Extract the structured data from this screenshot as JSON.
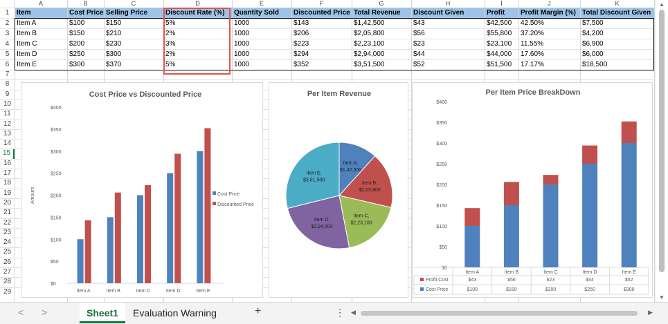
{
  "columns": [
    "A",
    "B",
    "C",
    "D",
    "E",
    "F",
    "G",
    "H",
    "I",
    "J",
    "K"
  ],
  "rows": [
    "1",
    "2",
    "3",
    "4",
    "5",
    "6",
    "7",
    "8",
    "9",
    "10",
    "11",
    "12",
    "13",
    "14",
    "15",
    "16",
    "17",
    "18",
    "19",
    "20",
    "21",
    "22",
    "23",
    "24",
    "25",
    "26",
    "27",
    "28",
    "29"
  ],
  "selected_row": "15",
  "table": {
    "headers": [
      "Item",
      "Cost Price",
      "Selling Price",
      "Discount Rate (%)",
      "Quantity Sold",
      "Discounted Price",
      "Total Revenue",
      "Discount Given",
      "Profit",
      "Profit Margin (%)",
      "Total Discount Given"
    ],
    "rows": [
      [
        "Item A",
        "$100",
        "$150",
        "5%",
        "1000",
        "$143",
        "$1,42,500",
        "$43",
        "$42,500",
        "42.50%",
        "$7,500"
      ],
      [
        "Item B",
        "$150",
        "$210",
        "2%",
        "1000",
        "$206",
        "$2,05,800",
        "$56",
        "$55,800",
        "37.20%",
        "$4,200"
      ],
      [
        "Item C",
        "$200",
        "$230",
        "3%",
        "1000",
        "$223",
        "$2,23,100",
        "$23",
        "$23,100",
        "11.55%",
        "$6,900"
      ],
      [
        "Item D",
        "$250",
        "$300",
        "2%",
        "1000",
        "$294",
        "$2,94,000",
        "$44",
        "$44,000",
        "17.60%",
        "$6,000"
      ],
      [
        "Item E",
        "$300",
        "$370",
        "5%",
        "1000",
        "$352",
        "$3,51,500",
        "$52",
        "$51,500",
        "17.17%",
        "$18,500"
      ]
    ],
    "highlight_color": "#e8514a"
  },
  "chart_data": [
    {
      "type": "bar",
      "title": "Cost Price vs Discounted Price",
      "ylabel": "Amount",
      "xlabel": "",
      "categories": [
        "Item A",
        "Item B",
        "Item C",
        "Item D",
        "Item E"
      ],
      "ylim": [
        0,
        400
      ],
      "yticks": [
        "$0",
        "$50",
        "$100",
        "$150",
        "$200",
        "$250",
        "$300",
        "$350",
        "$400"
      ],
      "series": [
        {
          "name": "Cost Price",
          "values": [
            100,
            150,
            200,
            250,
            300
          ],
          "color": "#4f81bd"
        },
        {
          "name": "Discounted Price",
          "values": [
            143,
            206,
            223,
            294,
            352
          ],
          "color": "#c0504d"
        }
      ],
      "legend": "right",
      "grid": false
    },
    {
      "type": "pie",
      "title": "Per Item Revenue",
      "categories": [
        "Item A",
        "Item B",
        "Item C",
        "Item D",
        "Item E"
      ],
      "values": [
        142500,
        205800,
        223100,
        294000,
        351500
      ],
      "labels": [
        "$1,42,500",
        "$2,05,800",
        "$2,23,100",
        "$2,94,000",
        "$3,51,500"
      ],
      "colors": [
        "#4f81bd",
        "#c0504d",
        "#9bbb59",
        "#8064a2",
        "#4bacc6"
      ]
    },
    {
      "type": "bar",
      "stacked": true,
      "title": "Per Item Price BreakDown",
      "categories": [
        "Item A",
        "Item B",
        "Item C",
        "Item D",
        "Item E"
      ],
      "ylim": [
        0,
        400
      ],
      "yticks": [
        "$0",
        "$50",
        "$100",
        "$150",
        "$200",
        "$250",
        "$300",
        "$350",
        "$400"
      ],
      "series": [
        {
          "name": "Cost Price",
          "values": [
            100,
            150,
            200,
            250,
            300
          ],
          "labels": [
            "$100",
            "$150",
            "$200",
            "$250",
            "$300"
          ],
          "color": "#4f81bd"
        },
        {
          "name": "Profit Cost",
          "values": [
            43,
            56,
            23,
            44,
            52
          ],
          "labels": [
            "$43",
            "$56",
            "$23",
            "$44",
            "$52"
          ],
          "color": "#c0504d"
        }
      ],
      "legend": "data-table",
      "grid": false
    }
  ],
  "tabs": {
    "sheet1": "Sheet1",
    "warning": "Evaluation Warning",
    "add": "+",
    "prev": "<",
    "next": ">",
    "more": "⋮"
  }
}
